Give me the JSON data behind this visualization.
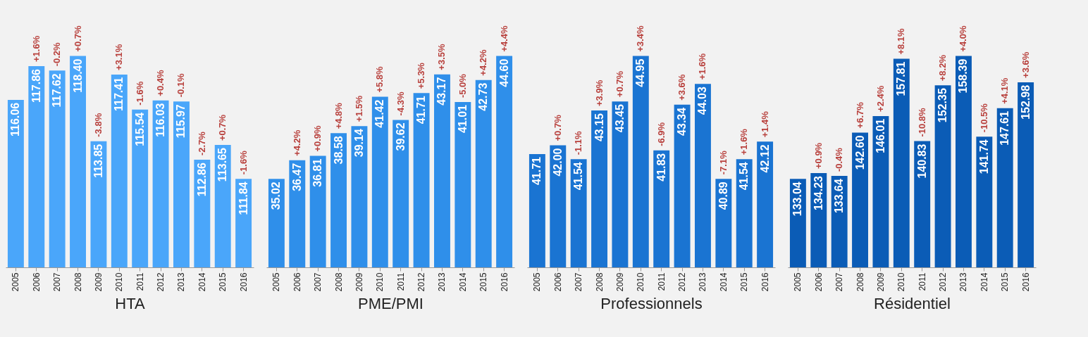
{
  "chart_data": [
    {
      "type": "bar",
      "xlabel": "HTA",
      "categories": [
        "2005",
        "2006",
        "2007",
        "2008",
        "2009",
        "2010",
        "2011",
        "2012",
        "2013",
        "2014",
        "2015",
        "2016"
      ],
      "values": [
        116.06,
        117.86,
        117.62,
        118.4,
        113.85,
        117.41,
        115.54,
        116.03,
        115.97,
        112.86,
        113.65,
        111.84
      ],
      "color": "#4aa6fa",
      "tick_labels": "x",
      "value_labels": [
        "116.06",
        "117.86",
        "117.62",
        "118.40",
        "113.85",
        "117.41",
        "115.54",
        "116.03",
        "115.97",
        "112.86",
        "113.65",
        "111.84"
      ],
      "annotations": [
        {
          "text": "+1.6%",
          "x": "2006",
          "y": 117.86
        },
        {
          "text": "-0.2%",
          "x": "2007",
          "y": 117.62
        },
        {
          "text": "+0.7%",
          "x": "2008",
          "y": 118.4
        },
        {
          "text": "-3.8%",
          "x": "2009",
          "y": 113.85
        },
        {
          "text": "+3.1%",
          "x": "2010",
          "y": 117.41
        },
        {
          "text": "-1.6%",
          "x": "2011",
          "y": 115.54
        },
        {
          "text": "+0.4%",
          "x": "2012",
          "y": 116.03
        },
        {
          "text": "-0.1%",
          "x": "2013",
          "y": 115.97
        },
        {
          "text": "-2.7%",
          "x": "2014",
          "y": 112.86
        },
        {
          "text": "+0.7%",
          "x": "2015",
          "y": 113.65
        },
        {
          "text": "-1.6%",
          "x": "2016",
          "y": 111.84
        }
      ]
    },
    {
      "type": "bar",
      "xlabel": "PME/PMI",
      "categories": [
        "2005",
        "2006",
        "2007",
        "2008",
        "2009",
        "2010",
        "2011",
        "2012",
        "2013",
        "2014",
        "2015",
        "2016"
      ],
      "values": [
        35.02,
        36.47,
        36.81,
        38.58,
        39.14,
        41.42,
        39.62,
        41.71,
        43.17,
        41.01,
        42.73,
        44.6
      ],
      "color": "#2f8fea",
      "tick_labels": "x",
      "value_labels": [
        "35.02",
        "36.47",
        "36.81",
        "38.58",
        "39.14",
        "41.42",
        "39.62",
        "41.71",
        "43.17",
        "41.01",
        "42.73",
        "44.60"
      ],
      "annotations": [
        {
          "text": "+4.2%",
          "x": "2006",
          "y": 36.47
        },
        {
          "text": "+0.9%",
          "x": "2007",
          "y": 36.81
        },
        {
          "text": "+4.8%",
          "x": "2008",
          "y": 38.58
        },
        {
          "text": "+1.5%",
          "x": "2009",
          "y": 39.14
        },
        {
          "text": "+5.8%",
          "x": "2010",
          "y": 41.42
        },
        {
          "text": "-4.3%",
          "x": "2011",
          "y": 39.62
        },
        {
          "text": "+5.3%",
          "x": "2012",
          "y": 41.71
        },
        {
          "text": "+3.5%",
          "x": "2013",
          "y": 43.17
        },
        {
          "text": "-5.0%",
          "x": "2014",
          "y": 41.01
        },
        {
          "text": "+4.2%",
          "x": "2015",
          "y": 42.73
        },
        {
          "text": "+4.4%",
          "x": "2016",
          "y": 44.6
        }
      ]
    },
    {
      "type": "bar",
      "xlabel": "Professionnels",
      "categories": [
        "2005",
        "2006",
        "2007",
        "2008",
        "2009",
        "2010",
        "2011",
        "2012",
        "2013",
        "2014",
        "2015",
        "2016"
      ],
      "values": [
        41.71,
        42.0,
        41.54,
        43.15,
        43.45,
        44.95,
        41.83,
        43.34,
        44.03,
        40.89,
        41.54,
        42.12
      ],
      "color": "#1a74d2",
      "tick_labels": "x",
      "value_labels": [
        "41.71",
        "42.00",
        "41.54",
        "43.15",
        "43.45",
        "44.95",
        "41.83",
        "43.34",
        "44.03",
        "40.89",
        "41.54",
        "42.12"
      ],
      "annotations": [
        {
          "text": "+0.7%",
          "x": "2006",
          "y": 42.0
        },
        {
          "text": "-1.1%",
          "x": "2007",
          "y": 41.54
        },
        {
          "text": "+3.9%",
          "x": "2008",
          "y": 43.15
        },
        {
          "text": "+0.7%",
          "x": "2009",
          "y": 43.45
        },
        {
          "text": "+3.4%",
          "x": "2010",
          "y": 44.95
        },
        {
          "text": "-6.9%",
          "x": "2011",
          "y": 41.83
        },
        {
          "text": "+3.6%",
          "x": "2012",
          "y": 43.34
        },
        {
          "text": "+1.6%",
          "x": "2013",
          "y": 44.03
        },
        {
          "text": "-7.1%",
          "x": "2014",
          "y": 40.89
        },
        {
          "text": "+1.6%",
          "x": "2015",
          "y": 41.54
        },
        {
          "text": "+1.4%",
          "x": "2016",
          "y": 42.12
        }
      ]
    },
    {
      "type": "bar",
      "xlabel": "Résidentiel",
      "categories": [
        "2005",
        "2006",
        "2007",
        "2008",
        "2009",
        "2010",
        "2011",
        "2012",
        "2013",
        "2014",
        "2015",
        "2016"
      ],
      "values": [
        133.04,
        134.23,
        133.64,
        142.6,
        146.01,
        157.81,
        140.83,
        152.35,
        158.39,
        141.74,
        147.61,
        152.98
      ],
      "color": "#0b5cb6",
      "tick_labels": "x",
      "value_labels": [
        "133.04",
        "134.23",
        "133.64",
        "142.60",
        "146.01",
        "157.81",
        "140.83",
        "152.35",
        "158.39",
        "141.74",
        "147.61",
        "152.98"
      ],
      "annotations": [
        {
          "text": "+0.9%",
          "x": "2006",
          "y": 134.23
        },
        {
          "text": "-0.4%",
          "x": "2007",
          "y": 133.64
        },
        {
          "text": "+6.7%",
          "x": "2008",
          "y": 142.6
        },
        {
          "text": "+2.4%",
          "x": "2009",
          "y": 146.01
        },
        {
          "text": "+8.1%",
          "x": "2010",
          "y": 157.81
        },
        {
          "text": "-10.8%",
          "x": "2011",
          "y": 140.83
        },
        {
          "text": "+8.2%",
          "x": "2012",
          "y": 152.35
        },
        {
          "text": "+4.0%",
          "x": "2013",
          "y": 158.39
        },
        {
          "text": "-10.5%",
          "x": "2014",
          "y": 141.74
        },
        {
          "text": "+4.1%",
          "x": "2015",
          "y": 147.61
        },
        {
          "text": "+3.6%",
          "x": "2016",
          "y": 152.98
        }
      ]
    }
  ]
}
